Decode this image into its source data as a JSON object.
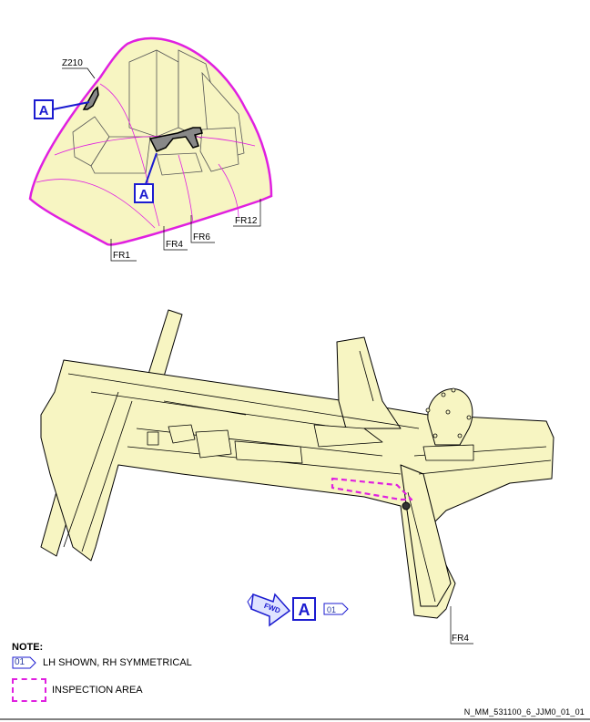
{
  "top_view": {
    "zone_label": "Z210",
    "callout": "A",
    "frame_labels": [
      "FR12",
      "FR6",
      "FR4",
      "FR1"
    ]
  },
  "detail_view": {
    "callout": "A",
    "fwd_label": "FWD",
    "ref_tag": "01",
    "frame_label": "FR4"
  },
  "notes": {
    "title": "NOTE:",
    "tag": "01",
    "line1": "LH SHOWN, RH SYMMETRICAL",
    "line2": "INSPECTION AREA"
  },
  "doc_reference": "N_MM_531100_6_JJM0_01_01",
  "colors": {
    "structure_fill": "#f7f5c2",
    "highlight": "#e020e0",
    "callout_blue": "#1b1bd0"
  }
}
